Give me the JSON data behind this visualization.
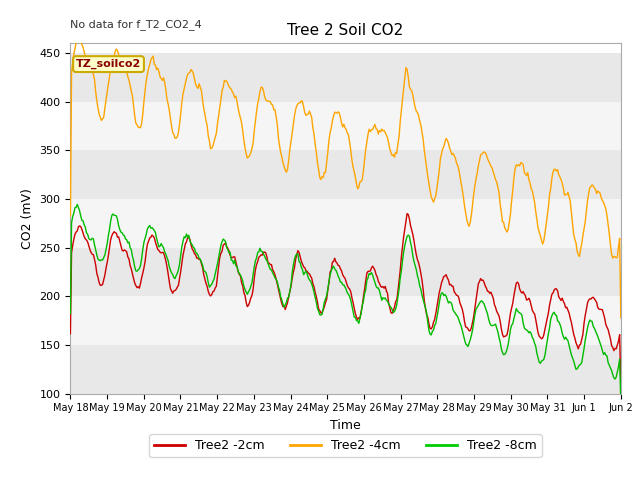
{
  "title": "Tree 2 Soil CO2",
  "top_left_text": "No data for f_T2_CO2_4",
  "ylabel": "CO2 (mV)",
  "xlabel": "Time",
  "ylim": [
    100,
    460
  ],
  "yticks": [
    100,
    150,
    200,
    250,
    300,
    350,
    400,
    450
  ],
  "legend_labels": [
    "Tree2 -2cm",
    "Tree2 -4cm",
    "Tree2 -8cm"
  ],
  "legend_colors": [
    "#cc0000",
    "#ffa500",
    "#00cc00"
  ],
  "annotation_text": "TZ_soilco2",
  "annotation_bg": "#ffffcc",
  "annotation_border": "#ccaa00",
  "x_tick_labels": [
    "May 18",
    "May 19",
    "May 20",
    "May 21",
    "May 22",
    "May 23",
    "May 24",
    "May 25",
    "May 26",
    "May 27",
    "May 28",
    "May 29",
    "May 30",
    "May 31",
    "Jun 1",
    "Jun 2"
  ],
  "color_2cm": "#cc0000",
  "color_4cm": "#ffa500",
  "color_8cm": "#00bb00",
  "fig_bg": "#ffffff",
  "plot_bg": "#f0f0f0",
  "band_color": "#e0e0e0",
  "band_color2": "#f8f8f8"
}
